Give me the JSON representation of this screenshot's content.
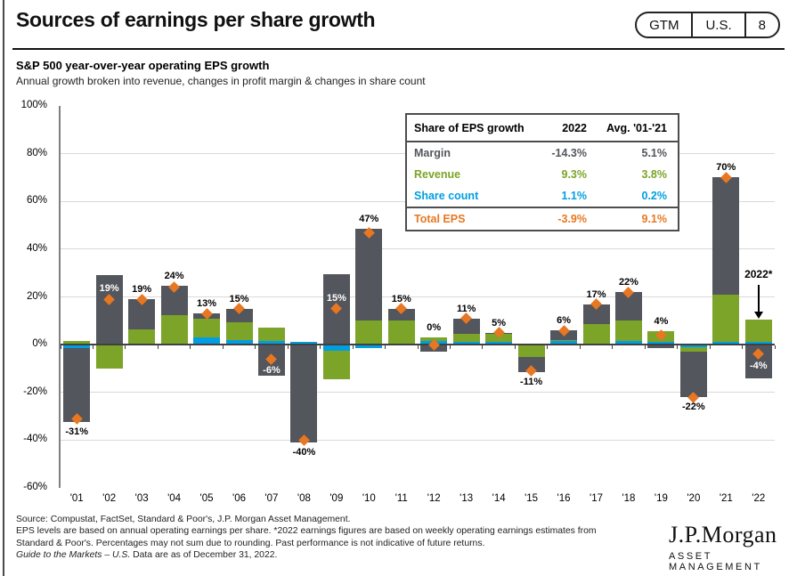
{
  "header": {
    "title": "Sources of earnings per share growth",
    "pill": {
      "gtm": "GTM",
      "region": "U.S.",
      "page": "8"
    }
  },
  "chart_data": {
    "type": "bar",
    "stacked": true,
    "title": "S&P 500 year-over-year operating EPS growth",
    "subtitle": "Annual growth broken into revenue, changes in profit margin & changes in share count",
    "ylim": [
      -60,
      100
    ],
    "yticks": [
      100,
      80,
      60,
      40,
      20,
      0,
      -20,
      -40,
      -60
    ],
    "gridlines": [
      80,
      60,
      40,
      20,
      -20,
      -40
    ],
    "grid": true,
    "legend": "none (table acts as legend)",
    "categories": [
      "'01",
      "'02",
      "'03",
      "'04",
      "'05",
      "'06",
      "'07",
      "'08",
      "'09",
      "'10",
      "'11",
      "'12",
      "'13",
      "'14",
      "'15",
      "'16",
      "'17",
      "'18",
      "'19",
      "'20",
      "'21",
      "'22"
    ],
    "series": [
      {
        "key": "margin",
        "name": "Margin",
        "color": "#53565C",
        "values": [
          -31,
          29,
          12.5,
          12,
          2,
          5.5,
          -13,
          -41,
          29.5,
          38.5,
          5,
          -3,
          6.5,
          0.5,
          -6.5,
          4,
          8.5,
          12,
          -1.5,
          -19,
          49,
          -14.3
        ]
      },
      {
        "key": "revenue",
        "name": "Revenue",
        "color": "#7BA428",
        "values": [
          1.5,
          -9.5,
          6.5,
          12.5,
          8,
          7.5,
          5.5,
          0,
          -12,
          10,
          9.5,
          1.5,
          3.5,
          3.5,
          -5,
          0.5,
          8,
          8.5,
          4.5,
          -2,
          20,
          9.3
        ]
      },
      {
        "key": "share-count",
        "name": "Share count",
        "color": "#009EE0",
        "values": [
          -1.5,
          -0.5,
          0,
          -0.5,
          3,
          2,
          1.5,
          1,
          -2.5,
          -1.5,
          0.5,
          1.5,
          1,
          1,
          0.5,
          1.5,
          0.5,
          1.5,
          1,
          -1,
          1,
          1.1
        ]
      }
    ],
    "totals": {
      "key": "total-eps",
      "name": "Total EPS",
      "color": "#E87722",
      "values": [
        -31,
        19,
        19,
        24,
        13,
        15,
        -6,
        -40,
        15,
        47,
        15,
        0,
        11,
        5,
        -11,
        6,
        17,
        22,
        4,
        -22,
        70,
        -4
      ]
    },
    "total_labels": [
      "-31%",
      "19%",
      "19%",
      "24%",
      "13%",
      "15%",
      "-6%",
      "-40%",
      "15%",
      "47%",
      "15%",
      "0%",
      "11%",
      "5%",
      "-11%",
      "6%",
      "17%",
      "22%",
      "4%",
      "-22%",
      "70%",
      "-4%"
    ],
    "label_modes": [
      "out-bottom",
      "in-top",
      "out-top",
      "out-top",
      "out-top",
      "out-top",
      "in-bottom",
      "out-bottom",
      "in-top",
      "out-top",
      "out-top",
      "out-top",
      "out-top",
      "out-top",
      "out-bottom",
      "out-top",
      "out-top",
      "out-top",
      "out-top",
      "out-bottom",
      "out-top",
      "in-bottom"
    ],
    "annotation": {
      "label": "2022*",
      "target_index": 21
    }
  },
  "table": {
    "title": "Share of EPS growth",
    "col_2022": "2022",
    "col_avg": "Avg. '01-'21",
    "rows": [
      {
        "name": "Margin",
        "v2022": "-14.3%",
        "avg": "5.1%",
        "color": "#53565C"
      },
      {
        "name": "Revenue",
        "v2022": "9.3%",
        "avg": "3.8%",
        "color": "#7BA428"
      },
      {
        "name": "Share count",
        "v2022": "1.1%",
        "avg": "0.2%",
        "color": "#009EE0"
      },
      {
        "name": "Total EPS",
        "v2022": "-3.9%",
        "avg": "9.1%",
        "color": "#E87722"
      }
    ]
  },
  "footer": {
    "line1": "Source: Compustat, FactSet, Standard & Poor's, J.P. Morgan Asset Management.",
    "line2": "EPS levels are based on annual operating earnings per share. *2022 earnings figures are based on weekly operating earnings estimates from",
    "line3": "Standard & Poor's. Percentages may not sum due to rounding. Past performance is not indicative of future returns.",
    "line4_italic": "Guide to the Markets – U.S.",
    "line4_rest": " Data are as of December 31, 2022."
  },
  "logo": {
    "brand": "J.P.Morgan",
    "unit": "ASSET MANAGEMENT"
  }
}
